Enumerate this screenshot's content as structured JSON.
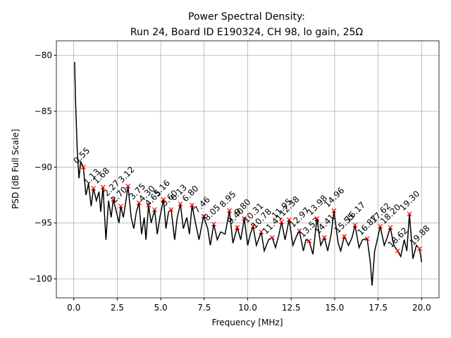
{
  "chart_data": {
    "type": "line",
    "title": [
      "Power Spectral Density:",
      "Run 24, Board ID E190324, CH 98, lo gain, 25Ω"
    ],
    "xlabel": "Frequency [MHz]",
    "ylabel": "PSD [dB Full Scale]",
    "grid": true,
    "xlim": [
      -1.0,
      21.0
    ],
    "ylim": [
      -101.7,
      -78.7
    ],
    "xticks": [
      {
        "value": 0,
        "label": "0.0"
      },
      {
        "value": 2.5,
        "label": "2.5"
      },
      {
        "value": 5,
        "label": "5.0"
      },
      {
        "value": 7.5,
        "label": "7.5"
      },
      {
        "value": 10,
        "label": "10.0"
      },
      {
        "value": 12.5,
        "label": "12.5"
      },
      {
        "value": 15,
        "label": "15.0"
      },
      {
        "value": 17.5,
        "label": "17.5"
      },
      {
        "value": 20,
        "label": "20.0"
      }
    ],
    "yticks": [
      {
        "value": -80,
        "label": "−80"
      },
      {
        "value": -85,
        "label": "−85"
      },
      {
        "value": -90,
        "label": "−90"
      },
      {
        "value": -95,
        "label": "−95"
      },
      {
        "value": -100,
        "label": "−100"
      }
    ],
    "series": [
      {
        "color": "#000000",
        "x": [
          0.05,
          0.1,
          0.2,
          0.3,
          0.4,
          0.55,
          0.7,
          0.85,
          1.0,
          1.13,
          1.3,
          1.45,
          1.55,
          1.68,
          1.85,
          2.0,
          2.15,
          2.27,
          2.45,
          2.6,
          2.7,
          2.85,
          3.0,
          3.12,
          3.3,
          3.45,
          3.6,
          3.75,
          3.9,
          4.05,
          4.15,
          4.3,
          4.45,
          4.65,
          4.8,
          4.95,
          5.16,
          5.3,
          5.45,
          5.6,
          5.8,
          5.95,
          6.13,
          6.3,
          6.5,
          6.65,
          6.8,
          7.0,
          7.2,
          7.46,
          7.7,
          7.85,
          8.05,
          8.25,
          8.45,
          8.7,
          8.95,
          9.15,
          9.4,
          9.6,
          9.8,
          10.0,
          10.15,
          10.31,
          10.5,
          10.78,
          10.95,
          11.2,
          11.41,
          11.6,
          11.8,
          11.95,
          12.15,
          12.38,
          12.6,
          12.8,
          12.97,
          13.2,
          13.35,
          13.53,
          13.75,
          13.98,
          14.2,
          14.41,
          14.6,
          14.8,
          14.96,
          15.2,
          15.35,
          15.55,
          15.8,
          16.0,
          16.17,
          16.4,
          16.6,
          16.87,
          17.05,
          17.15,
          17.3,
          17.45,
          17.62,
          17.85,
          18.0,
          18.2,
          18.4,
          18.62,
          18.8,
          19.0,
          19.15,
          19.3,
          19.5,
          19.7,
          19.88,
          20.0
        ],
        "values": [
          -80.6,
          -84,
          -88.5,
          -91,
          -89.5,
          -90,
          -92.5,
          -91.5,
          -93.5,
          -91.9,
          -93,
          -92.2,
          -94,
          -91.8,
          -96.5,
          -93,
          -94.5,
          -92.9,
          -94,
          -95,
          -93.5,
          -94.5,
          -93,
          -91.7,
          -94.5,
          -95.5,
          -94,
          -93.2,
          -96,
          -94.5,
          -96.5,
          -93.4,
          -95,
          -93.8,
          -96,
          -94.5,
          -92.9,
          -95.5,
          -94,
          -93.8,
          -96.5,
          -94.5,
          -93.3,
          -95.5,
          -94.5,
          -96,
          -93.4,
          -95,
          -96.5,
          -94.4,
          -95.5,
          -97,
          -95.1,
          -96.5,
          -95.8,
          -96,
          -93.9,
          -96.8,
          -95.4,
          -96.5,
          -94.6,
          -97,
          -96,
          -95.3,
          -97,
          -95.8,
          -97.5,
          -96.5,
          -96.3,
          -97.2,
          -96,
          -94.9,
          -96.5,
          -94.7,
          -97,
          -96.2,
          -95.7,
          -97.5,
          -96.5,
          -96.6,
          -97.8,
          -94.6,
          -97,
          -96.3,
          -97.5,
          -96,
          -93.9,
          -96.8,
          -97.5,
          -96.2,
          -97,
          -96.3,
          -95.2,
          -97.2,
          -96.5,
          -96.4,
          -98.5,
          -100.6,
          -97.5,
          -96.5,
          -95.3,
          -97,
          -96.4,
          -95.4,
          -97,
          -97.5,
          -98,
          -96.5,
          -97.5,
          -94.2,
          -98.2,
          -97,
          -97.3,
          -98.5
        ]
      }
    ],
    "peaks": {
      "color": "#ff0000",
      "x": [
        0.55,
        1.13,
        1.68,
        2.27,
        2.7,
        3.12,
        3.75,
        4.3,
        4.65,
        5.16,
        5.6,
        6.13,
        6.8,
        7.46,
        8.05,
        8.95,
        9.4,
        9.8,
        10.31,
        10.78,
        11.41,
        11.95,
        12.38,
        12.97,
        13.53,
        13.98,
        14.41,
        14.96,
        15.55,
        16.17,
        16.87,
        17.62,
        18.2,
        18.62,
        19.3,
        19.88
      ],
      "values": [
        -90.0,
        -91.9,
        -91.8,
        -92.9,
        -93.5,
        -91.7,
        -93.2,
        -93.4,
        -93.8,
        -92.9,
        -93.8,
        -93.3,
        -93.4,
        -94.4,
        -95.1,
        -93.9,
        -95.4,
        -94.6,
        -95.3,
        -95.8,
        -96.3,
        -94.9,
        -94.7,
        -95.7,
        -96.6,
        -94.6,
        -96.3,
        -93.9,
        -96.2,
        -95.2,
        -96.4,
        -95.3,
        -95.4,
        -97.5,
        -94.2,
        -97.3
      ],
      "labels": [
        "0.55",
        "1.13",
        "1.68",
        "2.27",
        "2.70",
        "3.12",
        "3.75",
        "4.30",
        "4.65",
        "5.16",
        "5.60",
        "6.13",
        "6.80",
        "7.46",
        "8.05",
        "8.95",
        "9.40",
        "9.80",
        "10.31",
        "10.78",
        "11.41",
        "11.95",
        "12.38",
        "12.97",
        "13.53",
        "13.98",
        "14.41",
        "14.96",
        "15.55",
        "16.17",
        "16.87",
        "17.62",
        "18.20",
        "18.62",
        "19.30",
        "19.88"
      ]
    }
  }
}
